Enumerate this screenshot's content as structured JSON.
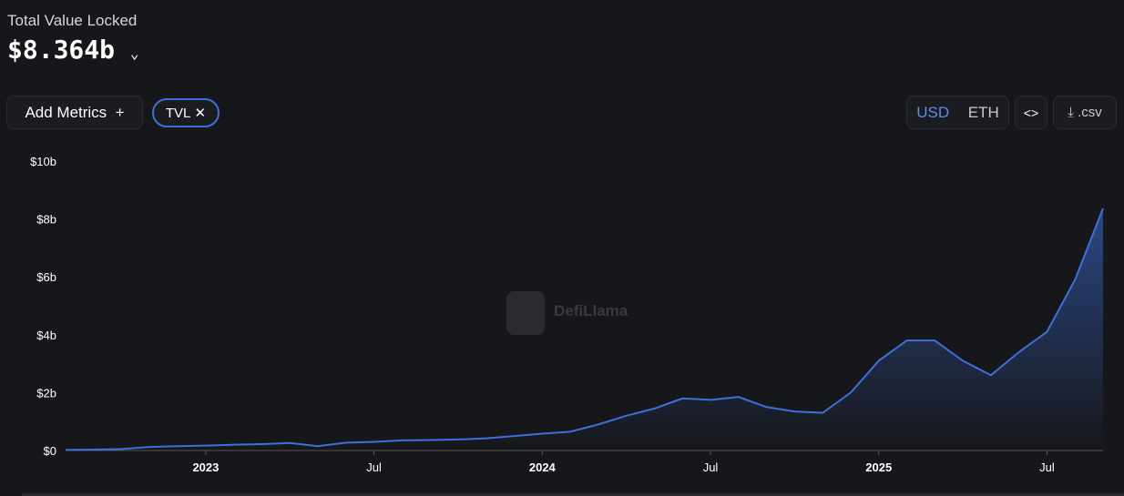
{
  "header": {
    "title": "Total Value Locked",
    "value": "$8.364b"
  },
  "toolbar": {
    "add_metrics": "Add Metrics",
    "metric_pill": "TVL",
    "currency_options": [
      "USD",
      "ETH"
    ],
    "csv": ".csv"
  },
  "watermark": "DefiLlama",
  "chart_data": {
    "type": "area",
    "x": [
      "2022-08",
      "2022-09",
      "2022-10",
      "2022-11",
      "2022-12",
      "2023-01",
      "2023-02",
      "2023-03",
      "2023-04",
      "2023-05",
      "2023-06",
      "2023-07",
      "2023-08",
      "2023-09",
      "2023-10",
      "2023-11",
      "2023-12",
      "2024-01",
      "2024-02",
      "2024-03",
      "2024-04",
      "2024-05",
      "2024-06",
      "2024-07",
      "2024-08",
      "2024-09",
      "2024-10",
      "2024-11",
      "2024-12",
      "2025-01",
      "2025-02",
      "2025-03",
      "2025-04",
      "2025-05",
      "2025-06",
      "2025-07",
      "2025-08",
      "2025-09"
    ],
    "values": [
      0.02,
      0.03,
      0.05,
      0.12,
      0.15,
      0.17,
      0.2,
      0.22,
      0.26,
      0.15,
      0.27,
      0.3,
      0.35,
      0.36,
      0.38,
      0.42,
      0.5,
      0.58,
      0.65,
      0.9,
      1.2,
      1.45,
      1.8,
      1.75,
      1.85,
      1.5,
      1.35,
      1.3,
      2.0,
      3.1,
      3.8,
      3.8,
      3.1,
      2.6,
      3.4,
      4.1,
      5.9,
      8.364
    ],
    "color": "#3e6fdb",
    "xlim": [
      "2022-08",
      "2025-09"
    ],
    "xticks": [
      {
        "value": "2023-01",
        "label": "2023"
      },
      {
        "value": "2023-07",
        "label": "Jul"
      },
      {
        "value": "2024-01",
        "label": "2024"
      },
      {
        "value": "2024-07",
        "label": "Jul"
      },
      {
        "value": "2025-01",
        "label": "2025"
      },
      {
        "value": "2025-07",
        "label": "Jul"
      }
    ],
    "ylim": [
      0,
      10
    ],
    "yticks": [
      {
        "value": 0,
        "label": "$0"
      },
      {
        "value": 2,
        "label": "$2b"
      },
      {
        "value": 4,
        "label": "$4b"
      },
      {
        "value": 6,
        "label": "$6b"
      },
      {
        "value": 8,
        "label": "$8b"
      },
      {
        "value": 10,
        "label": "$10b"
      }
    ]
  }
}
